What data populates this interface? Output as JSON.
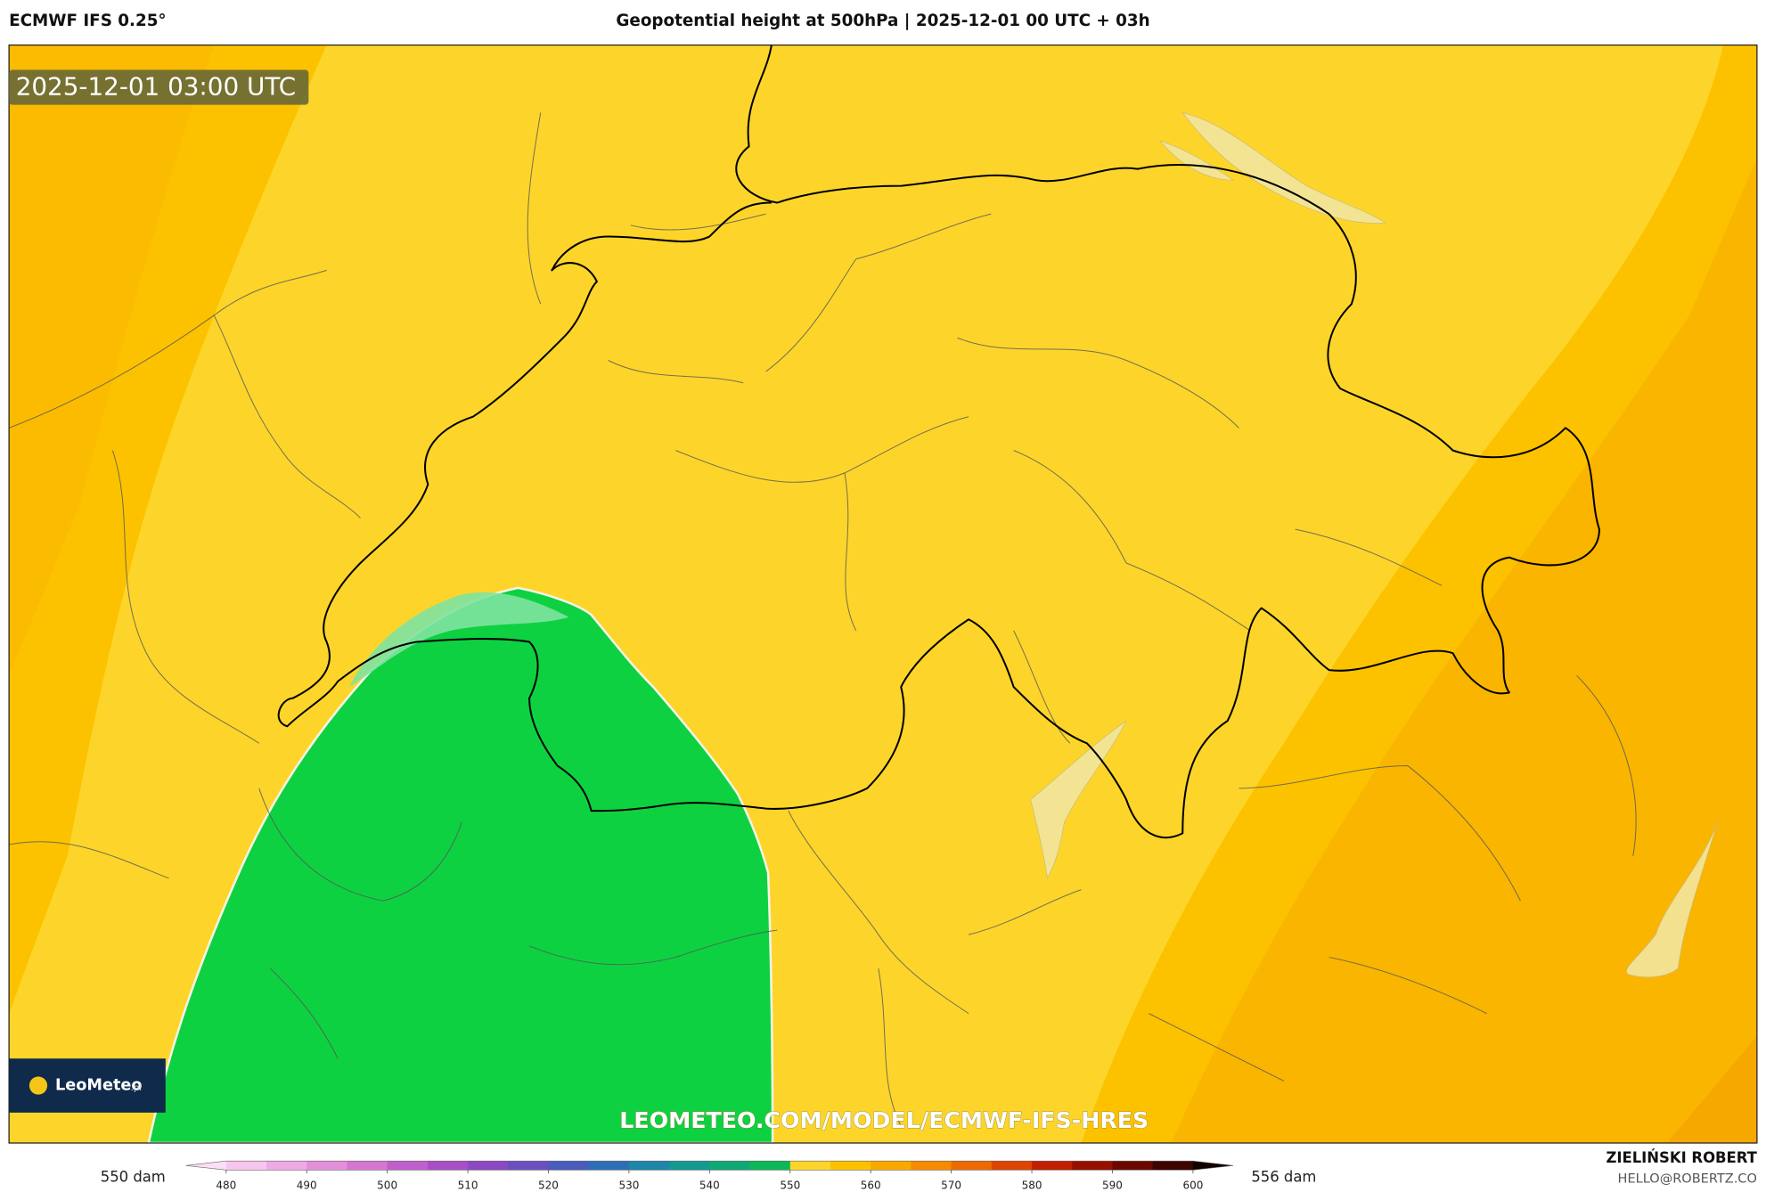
{
  "header": {
    "model": "ECMWF IFS 0.25°",
    "title": "Geopotential height at 500hPa | 2025-12-01 00 UTC + 03h"
  },
  "map": {
    "timestamp": "2025-12-01 03:00 UTC",
    "logo": "LeoMeteo",
    "logo_suffix": ".pl",
    "watermark": "LEOMETEO.COM/MODEL/ECMWF-IFS-HRES"
  },
  "colorbar": {
    "left_label": "550 dam",
    "right_label": "556 dam",
    "lim": [
      475,
      605
    ],
    "ticks": [
      480,
      490,
      500,
      510,
      520,
      530,
      540,
      550,
      560,
      570,
      580,
      590,
      600
    ],
    "colors": [
      "#fbe0f5",
      "#f6c6ee",
      "#eeaae4",
      "#e38fd9",
      "#d577d0",
      "#c060cc",
      "#a94fc6",
      "#8b49c2",
      "#6b4fc0",
      "#4a5cbc",
      "#2d6fb5",
      "#1f86a8",
      "#14998f",
      "#0fa874",
      "#0cb758",
      "#fdd52a",
      "#fcc200",
      "#f9a800",
      "#f48b00",
      "#ec6a00",
      "#dd4400",
      "#c02000",
      "#961000",
      "#6a0800",
      "#3d0400",
      "#100000"
    ]
  },
  "credit": {
    "author": "ZIELIŃSKI ROBERT",
    "email": "HELLO@ROBERTZ.CO"
  }
}
